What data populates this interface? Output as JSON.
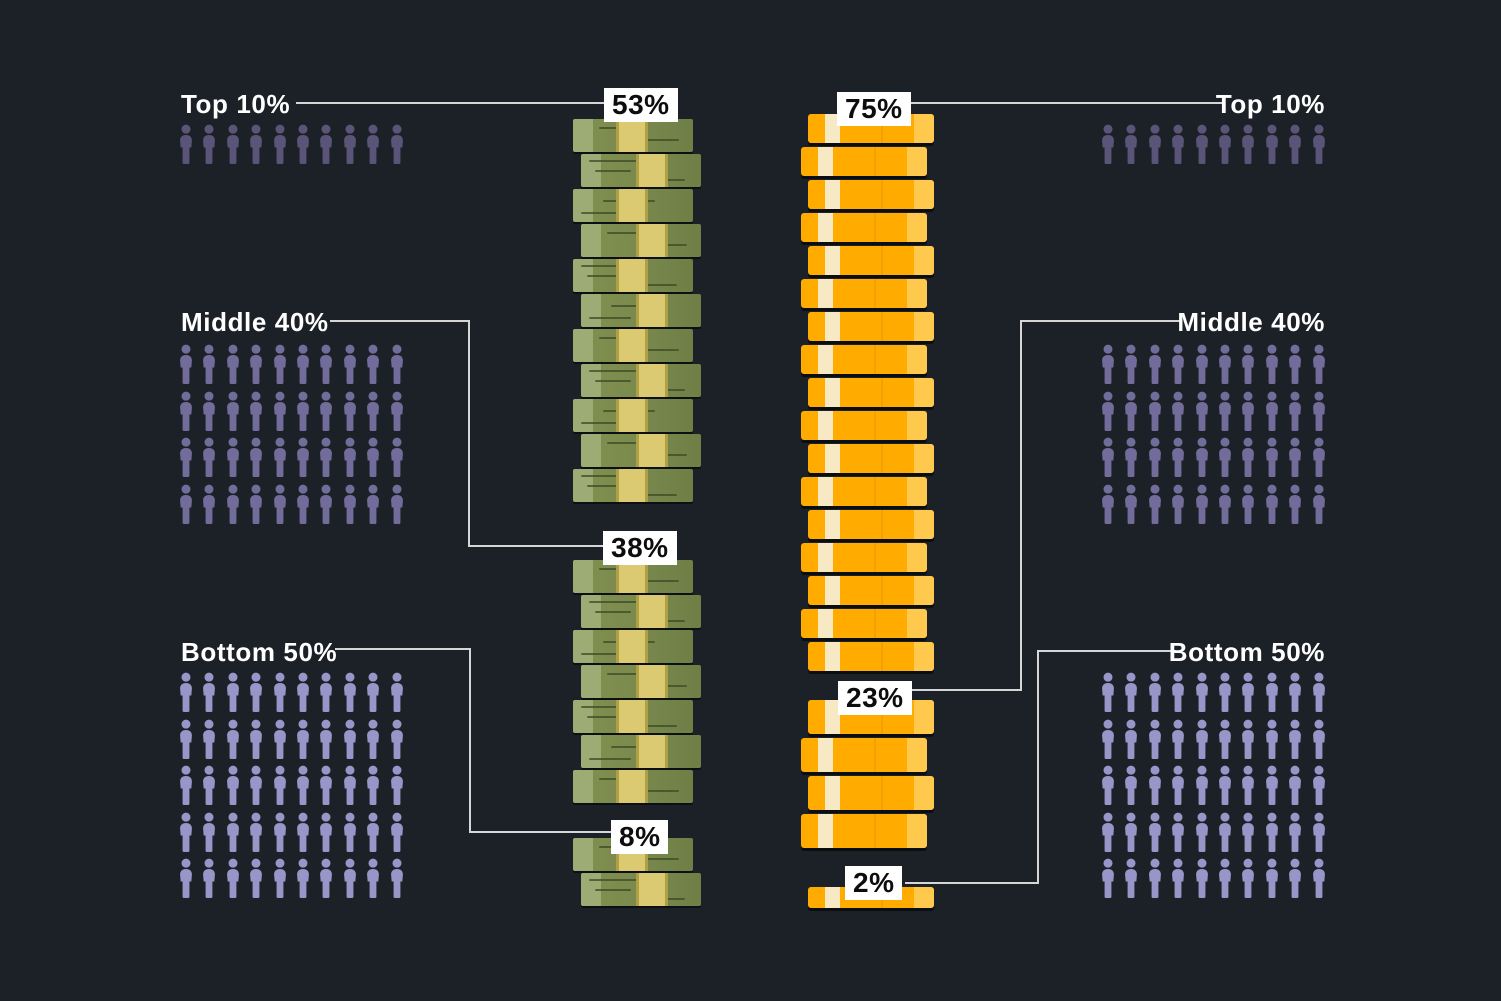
{
  "colors": {
    "background": "#1c2127",
    "label_text": "#ffffff",
    "connector": "#d6d6d6",
    "callout_bg": "#ffffff",
    "callout_text": "#0d0d0d",
    "people": {
      "top10": "#5a5479",
      "middle40": "#726c9b",
      "bottom50": "#9a95c8"
    },
    "cash": {
      "body": "#79894e",
      "body_light": "#82914f",
      "body_dark": "#6e7f45",
      "flap": "#9dab75",
      "band": "#dcca73",
      "band_edge": "#b0a044",
      "streak": "#3e4a26"
    },
    "gold": {
      "body": "#ffab00",
      "cap": "#ffc94e",
      "stripe": "#f6e9c4",
      "seam": "#e89b00"
    }
  },
  "population_groups": {
    "left": [
      {
        "id": "top10",
        "label": "Top 10%",
        "people": 10,
        "per_row": 10
      },
      {
        "id": "middle40",
        "label": "Middle 40%",
        "people": 40,
        "per_row": 10
      },
      {
        "id": "bottom50",
        "label": "Bottom 50%",
        "people": 50,
        "per_row": 10
      }
    ],
    "right": [
      {
        "id": "top10",
        "label": "Top 10%",
        "people": 10,
        "per_row": 10
      },
      {
        "id": "middle40",
        "label": "Middle 40%",
        "people": 40,
        "per_row": 10
      },
      {
        "id": "bottom50",
        "label": "Bottom 50%",
        "people": 50,
        "per_row": 10
      }
    ]
  },
  "callouts": {
    "cash": [
      "53%",
      "38%",
      "8%"
    ],
    "gold": [
      "75%",
      "23%",
      "2%"
    ]
  },
  "icons": {
    "person": "person-icon",
    "cash": "banknote-bundle-icon",
    "gold": "gold-bar-icon"
  },
  "chart_data": {
    "type": "pictogram",
    "categories": [
      "Top 10%",
      "Middle 40%",
      "Bottom 50%"
    ],
    "population_share_pct": [
      10,
      40,
      50
    ],
    "series": [
      {
        "name": "cash-stacks",
        "values_pct": [
          53,
          38,
          8
        ],
        "icon_counts": [
          11,
          7,
          2
        ]
      },
      {
        "name": "gold-bars",
        "values_pct": [
          75,
          23,
          2
        ],
        "icon_counts": [
          17,
          4,
          1
        ]
      }
    ],
    "legend_position": "none",
    "grid": false
  }
}
